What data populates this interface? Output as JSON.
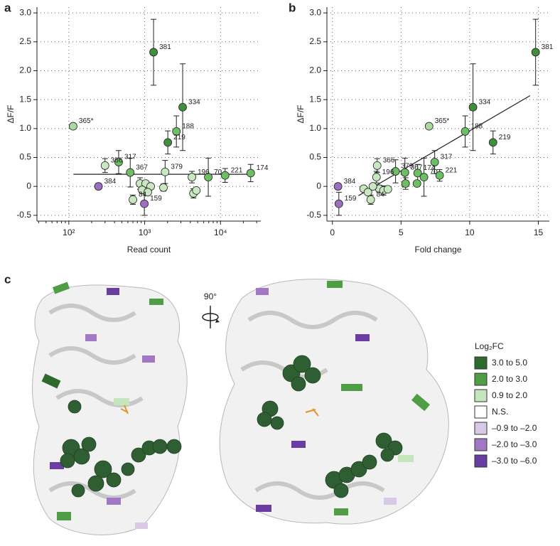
{
  "chart_data": [
    {
      "type": "scatter",
      "panel": "a",
      "xlabel": "Read count",
      "ylabel": "ΔF/F",
      "xscale": "log",
      "xlim": [
        38,
        34000
      ],
      "xticks": [
        {
          "value": 100,
          "label": "10²"
        },
        {
          "value": 1000,
          "label": "10³"
        },
        {
          "value": 10000,
          "label": "10⁴"
        }
      ],
      "ylim": [
        -0.6,
        3.1
      ],
      "yticks": [
        -0.5,
        0,
        0.5,
        {
          "value": 1,
          "label": "1.0"
        },
        1.5,
        {
          "value": 2,
          "label": "2.0"
        },
        2.5,
        {
          "value": 3,
          "label": "3.0"
        }
      ],
      "grid": true,
      "series": [
        {
          "x": [
            1310,
            3170,
            114,
            2620,
            2020,
            454,
            300,
            645,
            1860,
            4200,
            6900,
            11500,
            25000,
            246,
            990,
            700,
            869,
            1030,
            1200,
            927,
            1100,
            1770,
            4400,
            4800
          ],
          "values": [
            2.32,
            1.37,
            1.04,
            0.95,
            0.76,
            0.42,
            0.36,
            0.24,
            0.25,
            0.16,
            0.16,
            0.19,
            0.23,
            0.0,
            -0.3,
            -0.23,
            0.05,
            0.05,
            0.0,
            -0.06,
            -0.1,
            -0.02,
            -0.12,
            -0.07
          ],
          "errors": [
            0.57,
            0.75,
            null,
            0.27,
            0.2,
            0.2,
            0.12,
            0.25,
            0.2,
            0.1,
            0.33,
            0.12,
            0.15,
            0.05,
            0.2,
            0.08,
            0.1,
            null,
            null,
            null,
            null,
            0.06,
            0.08,
            null
          ],
          "point_labels": [
            "381",
            "334",
            "365*",
            "188",
            "219",
            "317",
            "366",
            "367",
            "379",
            "196",
            "70",
            "221",
            "174",
            "384",
            "159",
            "84",
            null,
            null,
            null,
            null,
            null,
            null,
            null,
            null
          ],
          "colors": [
            "#3f8f3c",
            "#3f8f3c",
            "#a9d9a0",
            "#6cbf62",
            "#3f8f3c",
            "#6cbf62",
            "#c9e8c1",
            "#6cbf62",
            "#c9e8c1",
            "#c9e8c1",
            "#6cbf62",
            "#6cbf62",
            "#6cbf62",
            "#9c6fc0",
            "#9c6fc0",
            "#c9e8c1",
            "#c9e8c1",
            "#c9e8c1",
            "#c9e8c1",
            "#c9e8c1",
            "#c9e8c1",
            "#c9e8c1",
            "#c9e8c1",
            "#c9e8c1"
          ]
        }
      ],
      "trend_line": {
        "x": [
          115,
          25000
        ],
        "values": [
          0.21,
          0.21
        ]
      }
    },
    {
      "type": "scatter",
      "panel": "b",
      "xlabel": "Fold change",
      "ylabel": "ΔF/F",
      "xscale": "linear",
      "xlim": [
        -0.4,
        15.8
      ],
      "xticks": [
        0,
        5,
        10,
        15
      ],
      "ylim": [
        -0.6,
        3.1
      ],
      "yticks": [
        -0.5,
        0,
        0.5,
        {
          "value": 1,
          "label": "1.0"
        },
        1.5,
        {
          "value": 2,
          "label": "2.0"
        },
        2.5,
        {
          "value": 3,
          "label": "3.0"
        }
      ],
      "grid": true,
      "series": [
        {
          "x": [
            14.8,
            10.24,
            7.04,
            9.67,
            11.7,
            7.45,
            7.81,
            3.26,
            5.28,
            4.6,
            3.21,
            6.21,
            6.67,
            0.41,
            0.47,
            2.79,
            5.33,
            6.16,
            2.28,
            2.59,
            3.41,
            3.72,
            4.04,
            2.95
          ],
          "values": [
            2.32,
            1.37,
            1.04,
            0.95,
            0.76,
            0.42,
            0.19,
            0.36,
            0.24,
            0.26,
            0.16,
            0.23,
            0.16,
            0.0,
            -0.3,
            -0.23,
            0.05,
            0.05,
            -0.04,
            -0.1,
            -0.04,
            -0.07,
            -0.05,
            0.0
          ],
          "errors": [
            0.57,
            0.75,
            null,
            0.27,
            0.2,
            0.2,
            0.1,
            0.12,
            0.25,
            0.2,
            0.1,
            0.15,
            0.33,
            0.05,
            0.2,
            0.08,
            0.1,
            null,
            null,
            null,
            0.06,
            0.08,
            null,
            null
          ],
          "point_labels": [
            "381",
            "334",
            "365*",
            "188",
            "219",
            "317",
            "221",
            "366",
            "367",
            "379",
            "196",
            "174",
            "70",
            "384",
            "159",
            "84",
            null,
            null,
            null,
            null,
            null,
            null,
            null,
            null
          ],
          "colors": [
            "#3f8f3c",
            "#3f8f3c",
            "#a9d9a0",
            "#6cbf62",
            "#3f8f3c",
            "#6cbf62",
            "#6cbf62",
            "#c9e8c1",
            "#6cbf62",
            "#6cbf62",
            "#c9e8c1",
            "#6cbf62",
            "#6cbf62",
            "#9c6fc0",
            "#9c6fc0",
            "#c9e8c1",
            "#6cbf62",
            "#6cbf62",
            "#c9e8c1",
            "#c9e8c1",
            "#c9e8c1",
            "#c9e8c1",
            "#c9e8c1",
            "#c9e8c1"
          ]
        }
      ],
      "trend_line": {
        "x": [
          1.9,
          14.4
        ],
        "values": [
          -0.16,
          1.57
        ]
      }
    }
  ],
  "panel_c": {
    "panel": "c",
    "rotation": "90°",
    "legend": {
      "title": "Log₂FC",
      "items": [
        {
          "label": "3.0 to 5.0",
          "color": "#2d6a2d"
        },
        {
          "label": "2.0 to 3.0",
          "color": "#4f9e46"
        },
        {
          "label": "0.9 to 2.0",
          "color": "#c5e6bd"
        },
        {
          "label": "N.S.",
          "color": "#ffffff"
        },
        {
          "label": "–0.9 to –2.0",
          "color": "#d9c8e6"
        },
        {
          "label": "–2.0 to –3.0",
          "color": "#a277c4"
        },
        {
          "label": "–3.0 to –6.0",
          "color": "#6a3ea1"
        }
      ]
    }
  }
}
